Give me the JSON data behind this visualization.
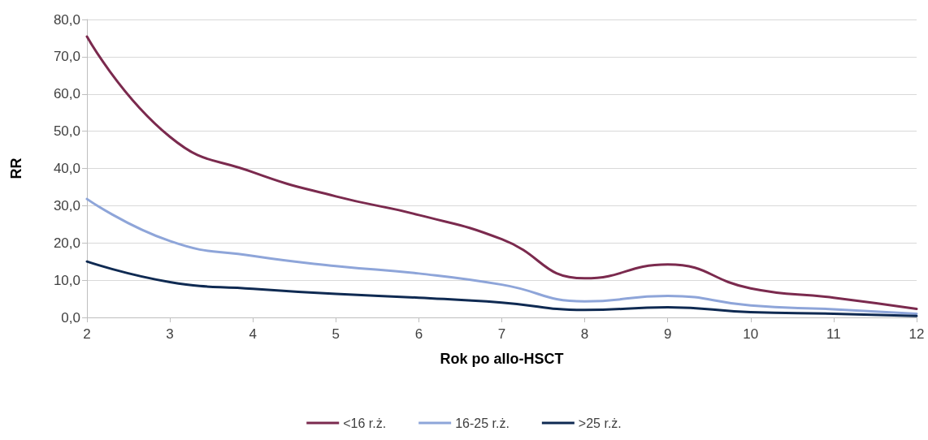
{
  "chart_data": {
    "type": "line",
    "xlabel": "Rok po allo-HSCT",
    "ylabel": "RR",
    "x": [
      2,
      3,
      4,
      5,
      6,
      7,
      8,
      9,
      10,
      11,
      12
    ],
    "series": [
      {
        "name": "<16 r.ż.",
        "color": "#7b2a4e",
        "values": [
          75.4,
          48.5,
          39,
          32.5,
          27.5,
          21,
          10.5,
          14.2,
          7.8,
          5.3,
          2.3
        ]
      },
      {
        "name": "16-25 r.ż.",
        "color": "#8ea5d9",
        "values": [
          31.8,
          20.5,
          16.5,
          13.8,
          11.8,
          8.8,
          4.3,
          5.8,
          3.2,
          2.2,
          1.0
        ]
      },
      {
        "name": ">25 r.ż.",
        "color": "#0f2a52",
        "values": [
          15,
          9.5,
          7.7,
          6.3,
          5.3,
          4.0,
          2.0,
          2.7,
          1.4,
          1.0,
          0.4
        ]
      }
    ],
    "xlim": [
      2,
      12
    ],
    "xticks": [
      2,
      3,
      4,
      5,
      6,
      7,
      8,
      9,
      10,
      11,
      12
    ],
    "ylim": [
      0,
      80
    ],
    "yticks": [
      {
        "value": 0,
        "label": "0,0"
      },
      {
        "value": 10,
        "label": "10,0"
      },
      {
        "value": 20,
        "label": "20,0"
      },
      {
        "value": 30,
        "label": "30,0"
      },
      {
        "value": 40,
        "label": "40,0"
      },
      {
        "value": 50,
        "label": "50,0"
      },
      {
        "value": 60,
        "label": "60,0"
      },
      {
        "value": 70,
        "label": "70,0"
      },
      {
        "value": 80,
        "label": "80,0"
      }
    ],
    "grid": "y",
    "legend": "bottom",
    "marker": "none",
    "line_style": "solid"
  }
}
